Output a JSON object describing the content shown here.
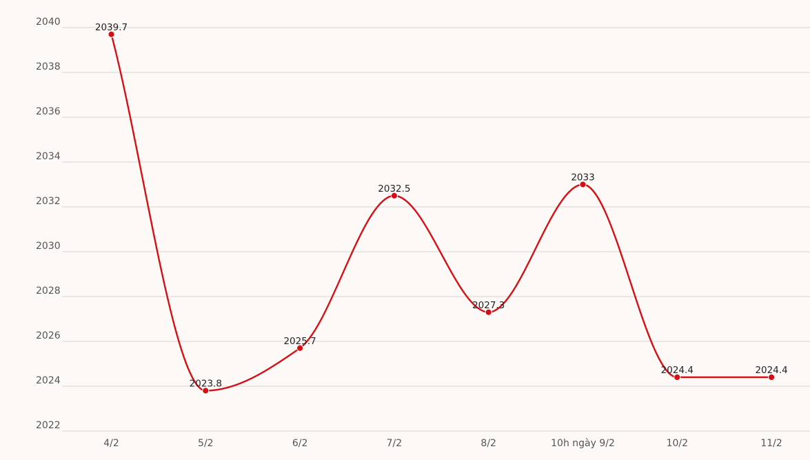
{
  "chart_data": {
    "type": "line",
    "categories": [
      "4/2",
      "5/2",
      "6/2",
      "7/2",
      "8/2",
      "10h ngày 9/2",
      "10/2",
      "11/2"
    ],
    "series": [
      {
        "values": [
          2039.7,
          2023.8,
          2025.7,
          2032.5,
          2027.3,
          2033,
          2024.4,
          2024.4
        ],
        "labels": [
          "2039.7",
          "2023.8",
          "2025.7",
          "2032.5",
          "2027.3",
          "2033",
          "2024.4",
          "2024.4"
        ],
        "color": "#d50f16"
      }
    ],
    "yticks": [
      "2022",
      "2024",
      "2026",
      "2028",
      "2030",
      "2032",
      "2034",
      "2036",
      "2038",
      "2040"
    ],
    "ylim": [
      2022,
      2040
    ],
    "grid": true,
    "background": "#fdf9f6",
    "title": "",
    "xlabel": "",
    "ylabel": ""
  }
}
